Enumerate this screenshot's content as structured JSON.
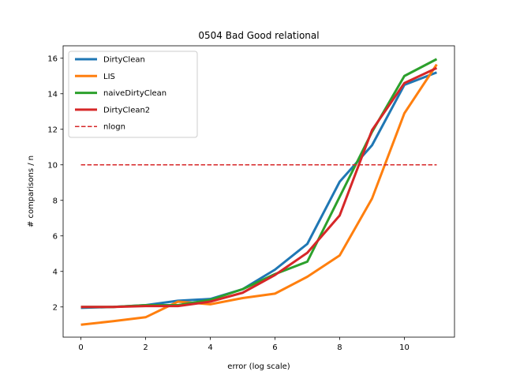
{
  "chart_data": {
    "type": "line",
    "title": "0504 Bad Good relational",
    "xlabel": "error (log scale)",
    "ylabel": "# comparisons / n",
    "xlim": [
      -0.55,
      11.55
    ],
    "ylim": [
      0.3,
      16.7
    ],
    "xticks": [
      0,
      2,
      4,
      6,
      8,
      10
    ],
    "yticks": [
      2,
      4,
      6,
      8,
      10,
      12,
      14,
      16
    ],
    "grid": false,
    "legend": "upper-left",
    "x": [
      0,
      1,
      2,
      3,
      4,
      5,
      6,
      7,
      8,
      9,
      10,
      11
    ],
    "series": [
      {
        "name": "DirtyClean",
        "color": "#1f77b4",
        "style": "solid",
        "values": [
          1.95,
          2.0,
          2.1,
          2.35,
          2.45,
          3.0,
          4.1,
          5.55,
          9.05,
          11.1,
          14.5,
          15.2
        ]
      },
      {
        "name": "LIS",
        "color": "#ff7f0e",
        "style": "solid",
        "values": [
          1.0,
          1.2,
          1.42,
          2.3,
          2.15,
          2.5,
          2.75,
          3.7,
          4.9,
          8.1,
          12.9,
          15.65
        ]
      },
      {
        "name": "naiveDirtyClean",
        "color": "#2ca02c",
        "style": "solid",
        "values": [
          2.0,
          2.0,
          2.1,
          2.1,
          2.4,
          3.0,
          3.85,
          4.55,
          8.2,
          11.85,
          15.0,
          15.95
        ]
      },
      {
        "name": "DirtyClean2",
        "color": "#d62728",
        "style": "solid",
        "values": [
          2.0,
          2.0,
          2.05,
          2.05,
          2.3,
          2.8,
          3.8,
          5.05,
          7.15,
          11.95,
          14.6,
          15.45
        ]
      },
      {
        "name": "nlogn",
        "color": "#d62728",
        "style": "dashed",
        "values": [
          10,
          10,
          10,
          10,
          10,
          10,
          10,
          10,
          10,
          10,
          10,
          10
        ]
      }
    ]
  }
}
